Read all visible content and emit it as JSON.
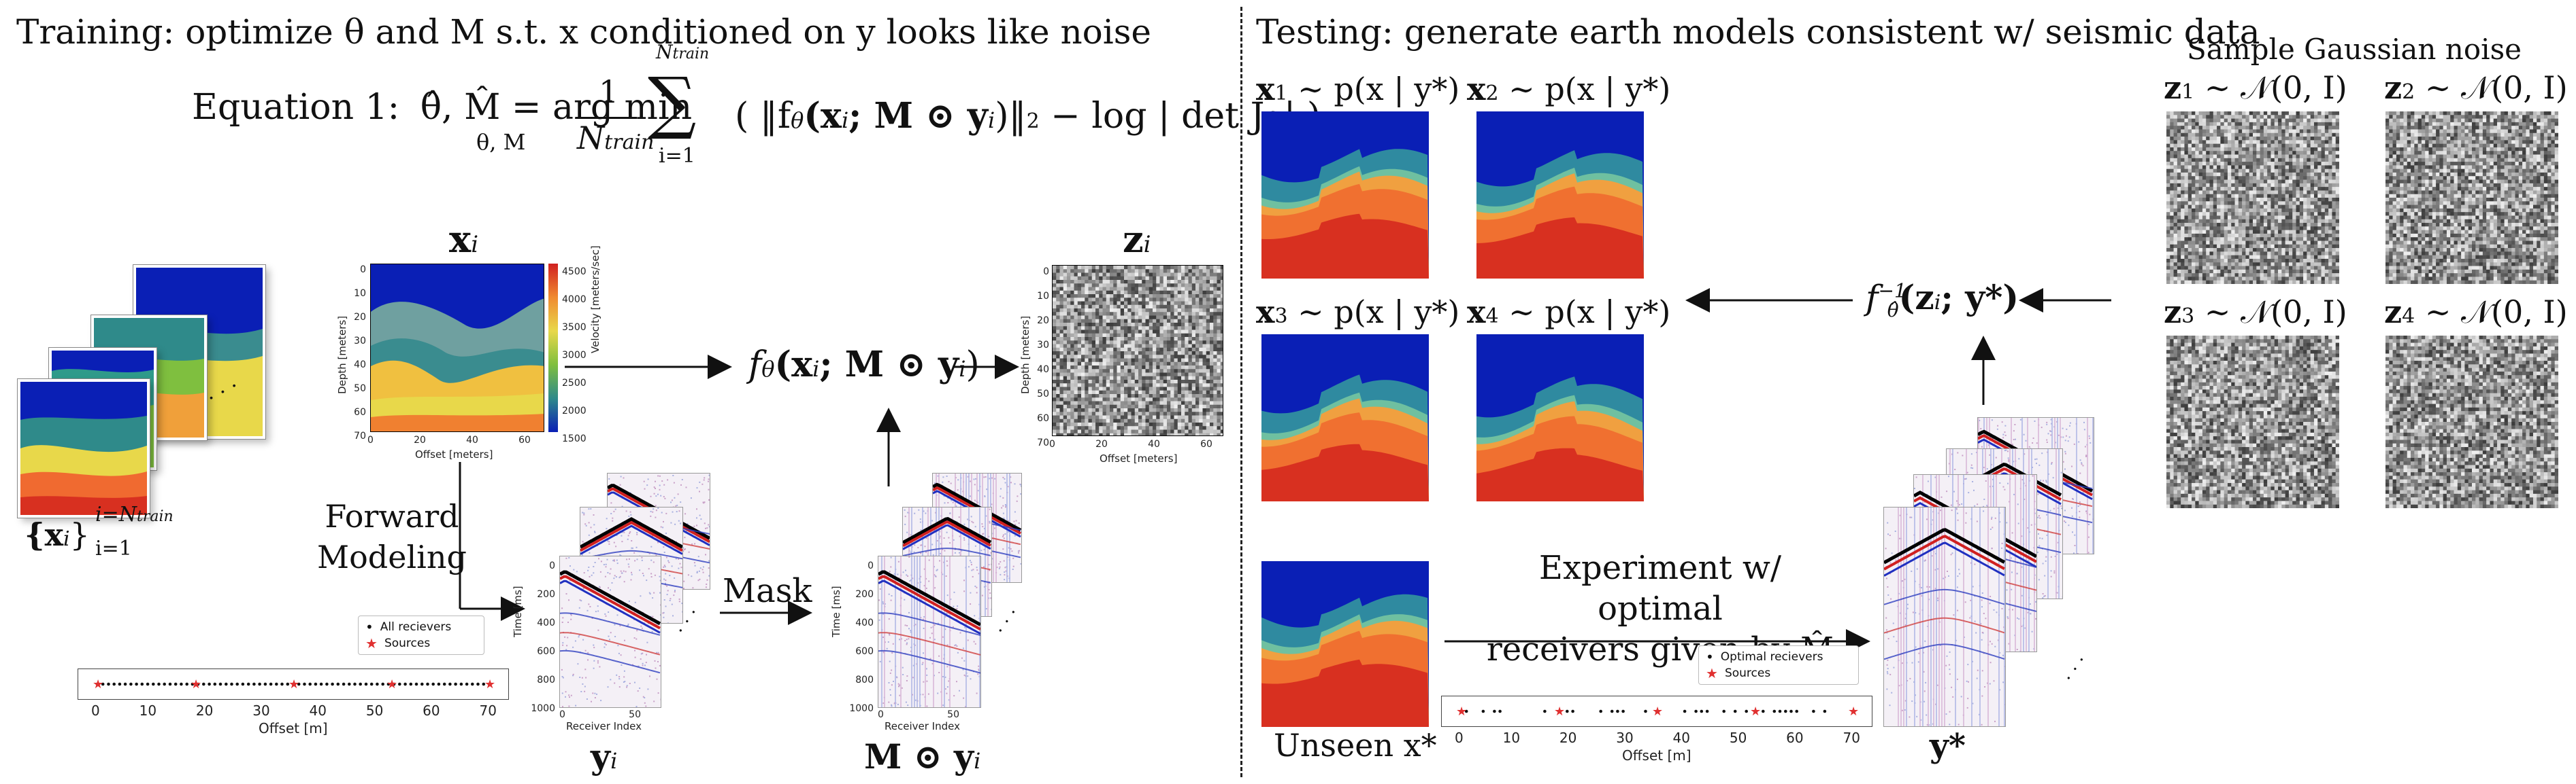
{
  "training": {
    "title": "Training: optimize θ and M s.t. x conditioned on y looks like noise",
    "equation_label": "Equation 1:",
    "equation_lhs": "θ̂, M̂ = arg min",
    "equation_argmin_sub": "θ, M",
    "equation_frac_num": "1",
    "equation_frac_den": "N",
    "equation_frac_den_sub": "train",
    "equation_sum_top": "N",
    "equation_sum_top_sub": "train",
    "equation_sum_bottom": "i=1",
    "equation_body": "( ‖f",
    "equation_body_2": "(x",
    "equation_body_3": "; M ⊙ y",
    "equation_body_4": ")‖",
    "equation_body_5": " − log | det J",
    "equation_body_6": " | )",
    "x_i_label": "x",
    "x_i_sub": "i",
    "z_i_label": "z",
    "z_i_sub": "i",
    "y_i_label": "y",
    "y_i_sub": "i",
    "mask_y_label": "M ⊙ y",
    "mask_y_sub": "i",
    "set_label": "{x",
    "set_label_sub": "i",
    "set_label_super": "i=N",
    "set_label_super_sub": "train",
    "set_label_lower": "i=1",
    "forward_modeling_line1": "Forward",
    "forward_modeling_line2": "Modeling",
    "mask_label": "Mask",
    "flow_label": "f",
    "flow_label_sub": "θ",
    "flow_label_args": "(x",
    "flow_label_args_sub": "i",
    "flow_label_args2": "; M ⊙ y",
    "flow_label_args2_sub": "i",
    "flow_label_args3": ")",
    "legend_all_receivers": "All recievers",
    "legend_sources": "Sources",
    "offset_axis_label": "Offset [m]",
    "offset_ticks": [
      "0",
      "10",
      "20",
      "30",
      "40",
      "50",
      "60",
      "70"
    ],
    "velocity_plot": {
      "ylabel": "Depth [meters]",
      "xlabel": "Offset [meters]",
      "yticks": [
        "0",
        "10",
        "20",
        "30",
        "40",
        "50",
        "60",
        "70"
      ],
      "xticks": [
        "0",
        "20",
        "40",
        "60"
      ],
      "colorbar_label": "Velocity [meters/sec]",
      "colorbar_ticks": [
        "4500",
        "4000",
        "3500",
        "3000",
        "2500",
        "2000",
        "1500"
      ]
    },
    "noise_plot": {
      "ylabel": "Depth [meters]",
      "xlabel": "Offset [meters]",
      "yticks": [
        "0",
        "10",
        "20",
        "30",
        "40",
        "50",
        "60",
        "70"
      ],
      "xticks": [
        "0",
        "20",
        "40",
        "60"
      ]
    },
    "seismic_plot": {
      "ylabel": "Time [ms]",
      "xlabel": "Receiver Index",
      "yticks": [
        "0",
        "200",
        "400",
        "600",
        "800",
        "1000"
      ],
      "xticks": [
        "0",
        "50"
      ]
    }
  },
  "testing": {
    "title": "Testing: generate earth models consistent w/ seismic data",
    "posterior_labels": [
      {
        "name": "x",
        "sub": "1",
        "rest": " ∼ p(x | y*)"
      },
      {
        "name": "x",
        "sub": "2",
        "rest": " ∼ p(x | y*)"
      },
      {
        "name": "x",
        "sub": "3",
        "rest": " ∼ p(x | y*)"
      },
      {
        "name": "x",
        "sub": "4",
        "rest": " ∼ p(x | y*)"
      }
    ],
    "inverse_label": "f",
    "inverse_label_sub": "θ̂",
    "inverse_label_sup": "−1",
    "inverse_label_args": "(z",
    "inverse_label_args_sub": "i",
    "inverse_label_args2": "; y*)",
    "experiment_line1": "Experiment w/ optimal",
    "experiment_line2": "receivers given by M̂",
    "unseen_label": "Unseen x*",
    "y_star_label": "y*",
    "legend_optimal_receivers": "Optimal recievers",
    "legend_sources": "Sources",
    "offset_axis_label": "Offset [m]",
    "offset_ticks": [
      "0",
      "10",
      "20",
      "30",
      "40",
      "50",
      "60",
      "70"
    ]
  },
  "noise_panel": {
    "title": "Sample Gaussian noise",
    "labels": [
      {
        "name": "z",
        "sub": "1",
        "rest": " ∼ 𝒩(0, I)"
      },
      {
        "name": "z",
        "sub": "2",
        "rest": " ∼ 𝒩(0, I)"
      },
      {
        "name": "z",
        "sub": "3",
        "rest": " ∼ 𝒩(0, I)"
      },
      {
        "name": "z",
        "sub": "4",
        "rest": " ∼ 𝒩(0, I)"
      }
    ]
  },
  "ellipsis": "·  ·  ·",
  "colors": {
    "deep_blue": "#0a1fb5",
    "teal": "#2f8a8a",
    "green": "#7fbf3f",
    "yellow": "#e8d84a",
    "orange": "#f08a30",
    "red": "#d83020",
    "source_red": "#e03030"
  }
}
